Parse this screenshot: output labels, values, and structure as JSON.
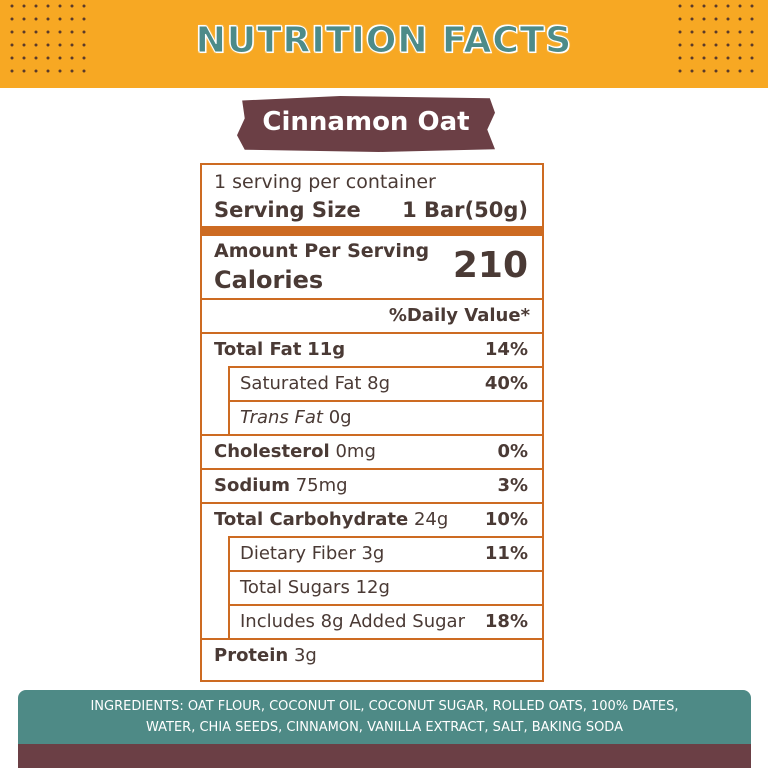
{
  "header": {
    "title": "NUTRITION FACTS"
  },
  "product": "Cinnamon Oat",
  "label": {
    "servings": "1 serving per container",
    "serving_size_label": "Serving Size",
    "serving_size": "1 Bar(50g)",
    "amount_per_serving": "Amount Per Serving",
    "calories_label": "Calories",
    "calories": "210",
    "daily_value_header": "%Daily Value*",
    "rows": [
      {
        "name": "Total Fat",
        "amount": "11g",
        "dv": "14%"
      },
      {
        "name": "Saturated Fat",
        "amount": "8g",
        "dv": "40%"
      },
      {
        "name": "Trans Fat",
        "amount": "0g"
      },
      {
        "name": "Cholesterol",
        "amount": "0mg",
        "dv": "0%"
      },
      {
        "name": "Sodium",
        "amount": "75mg",
        "dv": "3%"
      },
      {
        "name": "Total Carbohydrate",
        "amount": "24g",
        "dv": "10%"
      },
      {
        "name": "Dietary Fiber",
        "amount": "3g",
        "dv": "11%"
      },
      {
        "name": "Total Sugars",
        "amount": "12g"
      },
      {
        "name": "Includes 8g Added Sugar",
        "dv": "18%"
      },
      {
        "name": "Protein",
        "amount": "3g"
      }
    ]
  },
  "ingredients": {
    "lines": [
      "INGREDIENTS: OAT FLOUR, COCONUT OIL, COCONUT SUGAR, ROLLED OATS, 100% DATES,",
      "WATER, CHIA SEEDS, CINNAMON, VANILLA EXTRACT, SALT, BAKING SODA"
    ]
  }
}
